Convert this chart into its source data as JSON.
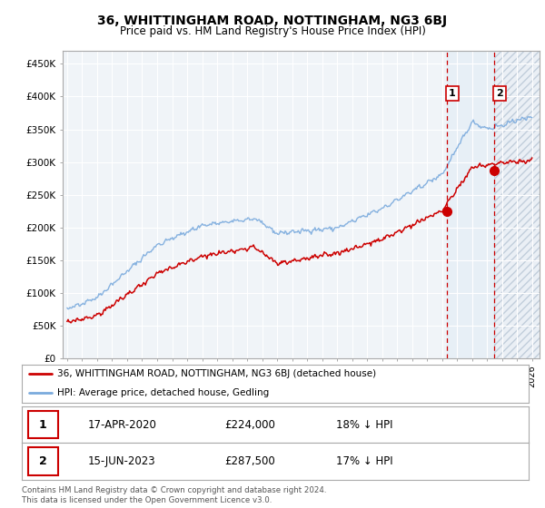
{
  "title": "36, WHITTINGHAM ROAD, NOTTINGHAM, NG3 6BJ",
  "subtitle": "Price paid vs. HM Land Registry's House Price Index (HPI)",
  "ylabel_ticks": [
    "£0",
    "£50K",
    "£100K",
    "£150K",
    "£200K",
    "£250K",
    "£300K",
    "£350K",
    "£400K",
    "£450K"
  ],
  "ytick_values": [
    0,
    50000,
    100000,
    150000,
    200000,
    250000,
    300000,
    350000,
    400000,
    450000
  ],
  "ylim": [
    0,
    470000
  ],
  "xlim_start": 1994.7,
  "xlim_end": 2026.5,
  "hpi_color": "#7aaadd",
  "price_color": "#cc0000",
  "marker1_x": 2020.3,
  "marker1_y": 224000,
  "marker2_x": 2023.45,
  "marker2_y": 287500,
  "shade_start": 2020.3,
  "shade_end": 2023.45,
  "hatch_start": 2023.45,
  "hatch_end": 2026.5,
  "marker1_label": "1",
  "marker2_label": "2",
  "sale1_date": "17-APR-2020",
  "sale1_price": "£224,000",
  "sale1_note": "18% ↓ HPI",
  "sale2_date": "15-JUN-2023",
  "sale2_price": "£287,500",
  "sale2_note": "17% ↓ HPI",
  "legend_line1": "36, WHITTINGHAM ROAD, NOTTINGHAM, NG3 6BJ (detached house)",
  "legend_line2": "HPI: Average price, detached house, Gedling",
  "footnote": "Contains HM Land Registry data © Crown copyright and database right 2024.\nThis data is licensed under the Open Government Licence v3.0.",
  "background_color": "#ffffff",
  "plot_bg_color": "#f0f4f8",
  "grid_color": "#ffffff",
  "shade_color": "#d8e8f5"
}
